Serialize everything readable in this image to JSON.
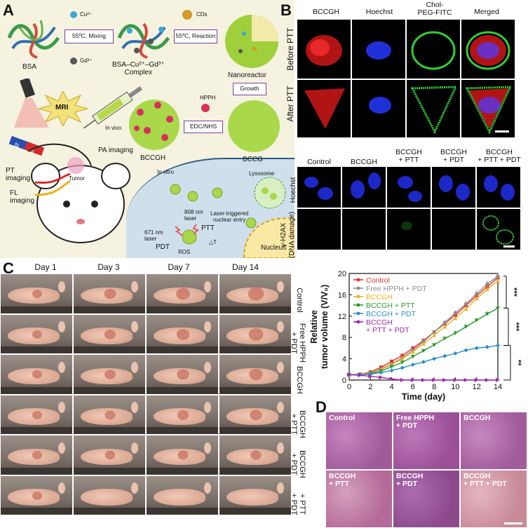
{
  "panel_letters": {
    "a": "A",
    "b": "B",
    "c": "C",
    "d": "D"
  },
  "panel_a": {
    "cu_label": "Cu²⁺",
    "gd_label": "Gd³⁺",
    "cds_label": "CDs",
    "step1": "55ºC, Mixing",
    "step2": "55ºC, Reaction",
    "bsa": "BSA",
    "complex": "BSA–Cu²⁺–Gd³⁺\nComplex",
    "nanoreactor": "Nanoreactor",
    "growth": "Growth",
    "hpph": "HPPH",
    "edc": "EDC/NHS",
    "bccgh": "BCCGH",
    "bccg": "BCCG",
    "mri": "MRI",
    "in_vivo": "In vivo",
    "pa_imaging": "PA imaging",
    "pt_imaging": "PT\nimaging",
    "fl_imaging": "FL\nimaging",
    "tumor": "Tumor",
    "in_vitro": "In vitro",
    "lysosome": "Lysosome",
    "laser_entry": "Laser-triggered\nnuclear entry",
    "nm808": "808 nm\nlaser",
    "nm671": "671 nm\nlaser",
    "ptt": "PTT",
    "pdt": "PDT",
    "ros": "ROS",
    "delta_t": "△T",
    "nucleus": "Nucleus",
    "magnet_n": "N",
    "magnet_s": "S"
  },
  "panel_b": {
    "col_heads": [
      "BCCGH",
      "Hoechst",
      "Chol-\nPEG-FITC",
      "Merged"
    ],
    "row_before": "Before PTT",
    "row_after": "After PTT",
    "lower_heads": [
      "Control",
      "BCCGH",
      "BCCGH\n+ PTT",
      "BCCGH\n+ PDT",
      "BCCGH\n+ PTT + PDT"
    ],
    "row_hoechst": "Hoechst",
    "row_h2ax": "γ-H2AX\n(DNA damage)"
  },
  "panel_c": {
    "days": [
      "Day 1",
      "Day 3",
      "Day 7",
      "Day 14"
    ],
    "groups": [
      "Control",
      "Free HPPH\n+ PDT",
      "BCCGH",
      "BCCGH\n+ PTT",
      "BCCGH\n+ PDT",
      "+ PTT\n+ PDT"
    ]
  },
  "panel_d": {
    "labels": [
      "Control",
      "Free HPPH\n+ PDT",
      "BCCGH",
      "BCCGH\n+ PTT",
      "BCCGH\n+ PDT",
      "BCCGH\n+ PTT + PDT"
    ]
  },
  "chart_data": {
    "type": "line",
    "xlabel": "Time (day)",
    "ylabel": "Relative\ntumor volume (V/V₀)",
    "xlim": [
      0,
      14
    ],
    "ylim": [
      0,
      20
    ],
    "xticks": [
      0,
      2,
      4,
      6,
      8,
      10,
      12,
      14
    ],
    "yticks": [
      0,
      4,
      8,
      12,
      16,
      20
    ],
    "legend_position": "top-left",
    "x": [
      0,
      1,
      2,
      3,
      4,
      5,
      6,
      7,
      8,
      9,
      10,
      11,
      12,
      13,
      14
    ],
    "series": [
      {
        "name": "Control",
        "color": "#e8302a",
        "values": [
          1.0,
          1.1,
          1.5,
          2.4,
          3.5,
          4.6,
          6.0,
          7.4,
          9.0,
          10.6,
          12.2,
          14.0,
          15.8,
          17.5,
          19.2
        ]
      },
      {
        "name": "Free HPPH + PDT",
        "color": "#8c8c8c",
        "values": [
          1.0,
          1.1,
          1.4,
          2.1,
          3.0,
          4.2,
          5.6,
          7.2,
          9.0,
          10.8,
          12.6,
          14.3,
          16.2,
          18.0,
          19.5
        ]
      },
      {
        "name": "BCCGH",
        "color": "#f0b020",
        "values": [
          1.0,
          1.1,
          1.3,
          2.0,
          2.9,
          4.0,
          5.3,
          6.8,
          8.4,
          10.0,
          11.6,
          13.3,
          15.3,
          17.0,
          18.6
        ]
      },
      {
        "name": "BCCGH + PTT",
        "color": "#2c9a2c",
        "values": [
          1.0,
          1.0,
          1.2,
          1.7,
          2.5,
          3.3,
          4.4,
          5.5,
          6.6,
          7.8,
          8.8,
          10.0,
          11.2,
          12.4,
          13.5
        ]
      },
      {
        "name": "BCCGH + PDT",
        "color": "#2a8fc8",
        "values": [
          1.0,
          1.0,
          1.1,
          1.4,
          1.8,
          2.3,
          2.9,
          3.4,
          4.0,
          4.5,
          5.0,
          5.6,
          6.0,
          6.2,
          6.5
        ]
      },
      {
        "name": "BCCGH\n+ PTT + PDT",
        "color": "#a224b4",
        "values": [
          1.0,
          0.9,
          0.7,
          0.5,
          0.2,
          0.0,
          0.0,
          0.0,
          0.0,
          0.0,
          0.0,
          0.0,
          0.0,
          0.0,
          0.0
        ]
      }
    ],
    "significance": [
      "***",
      "***",
      "**"
    ]
  }
}
